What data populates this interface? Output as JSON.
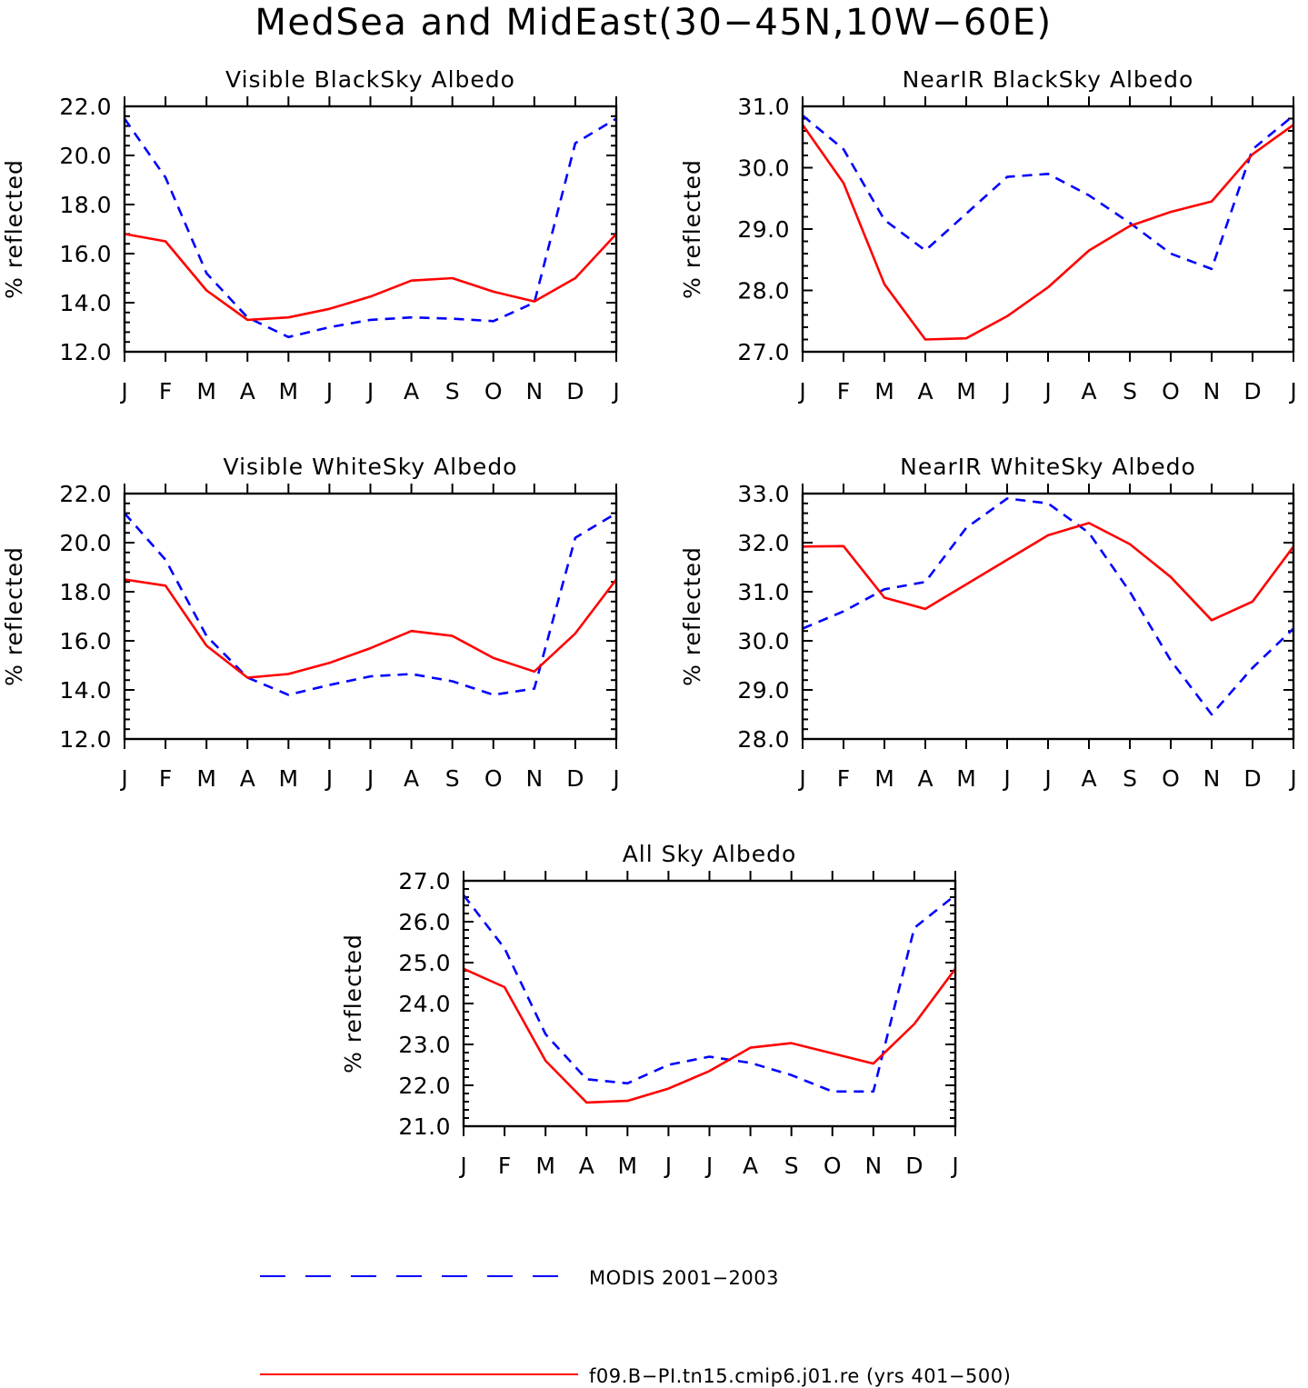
{
  "figure": {
    "title": "MedSea and MidEast(30−45N,10W−60E)"
  },
  "legend": {
    "placement": "bottom-center",
    "entries": [
      {
        "label": "MODIS 2001−2003",
        "color": "#0000ff",
        "dash": "dashed"
      },
      {
        "label": "f09.B−PI.tn15.cmip6.j01.re (yrs 401−500)",
        "color": "#ff0000",
        "dash": "solid"
      }
    ]
  },
  "chart_data": [
    {
      "type": "line",
      "title": "Visible BlackSky Albedo",
      "ylabel": "% reflected",
      "xlabel": "",
      "categories": [
        "J",
        "F",
        "M",
        "A",
        "M",
        "J",
        "J",
        "A",
        "S",
        "O",
        "N",
        "D",
        "J"
      ],
      "ylim": [
        12.0,
        22.0
      ],
      "yticks": [
        "12.0",
        "14.0",
        "16.0",
        "18.0",
        "20.0",
        "22.0"
      ],
      "series": [
        {
          "name": "MODIS 2001−2003",
          "color": "#0000ff",
          "dash": "dashed",
          "values": [
            21.5,
            19.1,
            15.2,
            13.4,
            12.6,
            13.0,
            13.3,
            13.4,
            13.35,
            13.25,
            14.0,
            20.5,
            21.5
          ]
        },
        {
          "name": "f09.B−PI.tn15.cmip6.j01.re (yrs 401−500)",
          "color": "#ff0000",
          "dash": "solid",
          "values": [
            16.8,
            16.5,
            14.5,
            13.3,
            13.4,
            13.75,
            14.25,
            14.9,
            15.0,
            14.45,
            14.05,
            15.0,
            16.8
          ]
        }
      ]
    },
    {
      "type": "line",
      "title": "NearIR BlackSky Albedo",
      "ylabel": "% reflected",
      "xlabel": "",
      "categories": [
        "J",
        "F",
        "M",
        "A",
        "M",
        "J",
        "J",
        "A",
        "S",
        "O",
        "N",
        "D",
        "J"
      ],
      "ylim": [
        27.0,
        31.0
      ],
      "yticks": [
        "27.0",
        "28.0",
        "29.0",
        "30.0",
        "31.0"
      ],
      "series": [
        {
          "name": "MODIS 2001−2003",
          "color": "#0000ff",
          "dash": "dashed",
          "values": [
            30.85,
            30.3,
            29.15,
            28.65,
            29.25,
            29.85,
            29.9,
            29.55,
            29.1,
            28.6,
            28.35,
            30.3,
            30.85
          ]
        },
        {
          "name": "f09.B−PI.tn15.cmip6.j01.re (yrs 401−500)",
          "color": "#ff0000",
          "dash": "solid",
          "values": [
            30.7,
            29.75,
            28.1,
            27.2,
            27.22,
            27.58,
            28.05,
            28.65,
            29.05,
            29.28,
            29.45,
            30.22,
            30.7
          ]
        }
      ]
    },
    {
      "type": "line",
      "title": "Visible WhiteSky Albedo",
      "ylabel": "% reflected",
      "xlabel": "",
      "categories": [
        "J",
        "F",
        "M",
        "A",
        "M",
        "J",
        "J",
        "A",
        "S",
        "O",
        "N",
        "D",
        "J"
      ],
      "ylim": [
        12.0,
        22.0
      ],
      "yticks": [
        "12.0",
        "14.0",
        "16.0",
        "18.0",
        "20.0",
        "22.0"
      ],
      "series": [
        {
          "name": "MODIS 2001−2003",
          "color": "#0000ff",
          "dash": "dashed",
          "values": [
            21.2,
            19.3,
            16.2,
            14.5,
            13.8,
            14.2,
            14.55,
            14.65,
            14.35,
            13.8,
            14.05,
            20.2,
            21.2
          ]
        },
        {
          "name": "f09.B−PI.tn15.cmip6.j01.re (yrs 401−500)",
          "color": "#ff0000",
          "dash": "solid",
          "values": [
            18.5,
            18.25,
            15.8,
            14.5,
            14.65,
            15.1,
            15.7,
            16.4,
            16.2,
            15.3,
            14.75,
            16.3,
            18.5
          ]
        }
      ]
    },
    {
      "type": "line",
      "title": "NearIR WhiteSky Albedo",
      "ylabel": "% reflected",
      "xlabel": "",
      "categories": [
        "J",
        "F",
        "M",
        "A",
        "M",
        "J",
        "J",
        "A",
        "S",
        "O",
        "N",
        "D",
        "J"
      ],
      "ylim": [
        28.0,
        33.0
      ],
      "yticks": [
        "28.0",
        "29.0",
        "30.0",
        "31.0",
        "32.0",
        "33.0"
      ],
      "series": [
        {
          "name": "MODIS 2001−2003",
          "color": "#0000ff",
          "dash": "dashed",
          "values": [
            30.25,
            30.6,
            31.05,
            31.2,
            32.3,
            32.9,
            32.8,
            32.2,
            31.0,
            29.6,
            28.5,
            29.45,
            30.25
          ]
        },
        {
          "name": "f09.B−PI.tn15.cmip6.j01.re (yrs 401−500)",
          "color": "#ff0000",
          "dash": "solid",
          "values": [
            31.92,
            31.93,
            30.88,
            30.65,
            31.15,
            31.65,
            32.15,
            32.4,
            31.97,
            31.3,
            30.42,
            30.8,
            31.92
          ]
        }
      ]
    },
    {
      "type": "line",
      "title": "All Sky Albedo",
      "ylabel": "% reflected",
      "xlabel": "",
      "categories": [
        "J",
        "F",
        "M",
        "A",
        "M",
        "J",
        "J",
        "A",
        "S",
        "O",
        "N",
        "D",
        "J"
      ],
      "ylim": [
        21.0,
        27.0
      ],
      "yticks": [
        "21.0",
        "22.0",
        "23.0",
        "24.0",
        "25.0",
        "26.0",
        "27.0"
      ],
      "series": [
        {
          "name": "MODIS 2001−2003",
          "color": "#0000ff",
          "dash": "dashed",
          "values": [
            26.65,
            25.35,
            23.25,
            22.15,
            22.05,
            22.5,
            22.7,
            22.55,
            22.25,
            21.85,
            21.85,
            25.85,
            26.65
          ]
        },
        {
          "name": "f09.B−PI.tn15.cmip6.j01.re (yrs 401−500)",
          "color": "#ff0000",
          "dash": "solid",
          "values": [
            24.85,
            24.4,
            22.6,
            21.58,
            21.62,
            21.92,
            22.35,
            22.92,
            23.03,
            22.78,
            22.53,
            23.5,
            24.85
          ]
        }
      ]
    }
  ]
}
